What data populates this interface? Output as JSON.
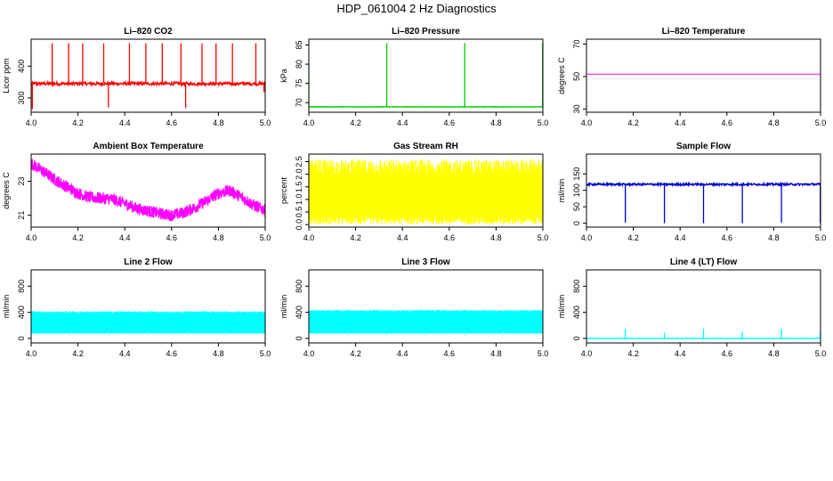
{
  "figure": {
    "title": "HDP_061004  2 Hz Diagnostics"
  },
  "chart_data": [
    {
      "id": "co2",
      "type": "line",
      "title": "Li–820 CO2",
      "xlabel": "",
      "ylabel": "Licor ppm",
      "xlim": [
        4.0,
        5.0
      ],
      "ylim": [
        255,
        485
      ],
      "xticks": [
        4.0,
        4.2,
        4.4,
        4.6,
        4.8,
        5.0
      ],
      "yticks": [
        300,
        400
      ],
      "color": "#ff0000",
      "series": [
        {
          "baseline": 345,
          "noise": 5,
          "spikes": [
            {
              "x": 4.09,
              "y": 472
            },
            {
              "x": 4.16,
              "y": 472
            },
            {
              "x": 4.22,
              "y": 472
            },
            {
              "x": 4.31,
              "y": 472
            },
            {
              "x": 4.42,
              "y": 472
            },
            {
              "x": 4.49,
              "y": 472
            },
            {
              "x": 4.56,
              "y": 472
            },
            {
              "x": 4.64,
              "y": 472
            },
            {
              "x": 4.73,
              "y": 472
            },
            {
              "x": 4.79,
              "y": 472
            },
            {
              "x": 4.86,
              "y": 472
            },
            {
              "x": 4.96,
              "y": 472
            }
          ],
          "dips": [
            {
              "x": 4.005,
              "y": 265
            },
            {
              "x": 4.33,
              "y": 270
            },
            {
              "x": 4.66,
              "y": 268
            },
            {
              "x": 4.995,
              "y": 318
            }
          ]
        }
      ]
    },
    {
      "id": "pressure",
      "type": "line",
      "title": "Li–820 Pressure",
      "xlabel": "",
      "ylabel": "kPa",
      "xlim": [
        4.0,
        5.0
      ],
      "ylim": [
        67.5,
        86.5
      ],
      "xticks": [
        4.0,
        4.2,
        4.4,
        4.6,
        4.8,
        5.0
      ],
      "yticks": [
        70,
        75,
        80,
        85
      ],
      "color": "#00cc00",
      "series": [
        {
          "baseline": 68.9,
          "noise": 0.05,
          "spikes": [
            {
              "x": 4.0,
              "y": 80.0
            },
            {
              "x": 4.333,
              "y": 85.5
            },
            {
              "x": 4.666,
              "y": 85.5
            },
            {
              "x": 4.999,
              "y": 85.5
            }
          ],
          "dips": []
        }
      ]
    },
    {
      "id": "temperature",
      "type": "line",
      "title": "Li–820 Temperature",
      "xlabel": "",
      "ylabel": "degrees C",
      "xlim": [
        4.0,
        5.0
      ],
      "ylim": [
        28,
        73
      ],
      "xticks": [
        4.0,
        4.2,
        4.4,
        4.6,
        4.8,
        5.0
      ],
      "yticks": [
        30,
        50,
        70
      ],
      "color": "#ff00ff",
      "series": [
        {
          "points": [
            [
              4.0,
              51.5
            ],
            [
              5.0,
              51.5
            ]
          ]
        }
      ]
    },
    {
      "id": "ambient",
      "type": "line",
      "title": "Ambient Box Temperature",
      "xlabel": "",
      "ylabel": "degrees C",
      "xlim": [
        4.0,
        5.0
      ],
      "ylim": [
        20.3,
        24.6
      ],
      "xticks": [
        4.0,
        4.2,
        4.4,
        4.6,
        4.8,
        5.0
      ],
      "yticks": [
        21,
        23
      ],
      "color": "#ff00ff",
      "series": [
        {
          "band": 0.35,
          "points": [
            [
              4.0,
              24.05
            ],
            [
              4.05,
              23.6
            ],
            [
              4.1,
              23.1
            ],
            [
              4.15,
              22.7
            ],
            [
              4.2,
              22.3
            ],
            [
              4.25,
              22.05
            ],
            [
              4.3,
              22.0
            ],
            [
              4.35,
              21.95
            ],
            [
              4.4,
              21.7
            ],
            [
              4.45,
              21.4
            ],
            [
              4.5,
              21.25
            ],
            [
              4.55,
              21.1
            ],
            [
              4.6,
              21.0
            ],
            [
              4.65,
              21.15
            ],
            [
              4.7,
              21.45
            ],
            [
              4.75,
              21.85
            ],
            [
              4.8,
              22.3
            ],
            [
              4.85,
              22.45
            ],
            [
              4.9,
              22.05
            ],
            [
              4.95,
              21.6
            ],
            [
              5.0,
              21.3
            ]
          ]
        }
      ]
    },
    {
      "id": "rh",
      "type": "line",
      "title": "Gas Stream RH",
      "xlabel": "",
      "ylabel": "percent",
      "xlim": [
        4.0,
        5.0
      ],
      "ylim": [
        -0.1,
        2.8
      ],
      "xticks": [
        4.0,
        4.2,
        4.4,
        4.6,
        4.8,
        5.0
      ],
      "yticks": [
        0.0,
        0.5,
        1.0,
        1.5,
        2.0,
        2.5
      ],
      "color": "#ffff00",
      "series": [
        {
          "center": 1.1,
          "low": 0.0,
          "high": 2.6,
          "core_low": 0.35,
          "core_high": 1.95
        }
      ]
    },
    {
      "id": "sample_flow",
      "type": "line",
      "title": "Sample Flow",
      "xlabel": "",
      "ylabel": "ml/min",
      "xlim": [
        4.0,
        5.0
      ],
      "ylim": [
        -12,
        210
      ],
      "xticks": [
        4.0,
        4.2,
        4.4,
        4.6,
        4.8,
        5.0
      ],
      "yticks": [
        0,
        50,
        100,
        150
      ],
      "color": "#0000cc",
      "series": [
        {
          "baseline": 118,
          "noise": 3,
          "spikes": [],
          "dips": [
            {
              "x": 4.166,
              "y": 2
            },
            {
              "x": 4.333,
              "y": 0
            },
            {
              "x": 4.5,
              "y": 0
            },
            {
              "x": 4.666,
              "y": 0
            },
            {
              "x": 4.833,
              "y": 2
            },
            {
              "x": 4.999,
              "y": 0
            }
          ]
        }
      ]
    },
    {
      "id": "line2",
      "type": "line",
      "title": "Line 2 Flow",
      "xlabel": "",
      "ylabel": "ml/min",
      "xlim": [
        4.0,
        5.0
      ],
      "ylim": [
        -70,
        1050
      ],
      "xticks": [
        4.0,
        4.2,
        4.4,
        4.6,
        4.8,
        5.0
      ],
      "yticks": [
        0,
        400,
        800
      ],
      "color": "#00ffff",
      "series": [
        {
          "low": 75,
          "high": 420,
          "gaps": [
            4.166,
            4.333,
            4.5,
            4.666,
            4.833
          ]
        }
      ]
    },
    {
      "id": "line3",
      "type": "line",
      "title": "Line 3 Flow",
      "xlabel": "",
      "ylabel": "ml/min",
      "xlim": [
        4.0,
        5.0
      ],
      "ylim": [
        -70,
        1050
      ],
      "xticks": [
        4.0,
        4.2,
        4.4,
        4.6,
        4.8,
        5.0
      ],
      "yticks": [
        0,
        400,
        800
      ],
      "color": "#00ffff",
      "series": [
        {
          "low": 75,
          "high": 440,
          "gaps": [
            4.166,
            4.333,
            4.5,
            4.666,
            4.833
          ]
        }
      ]
    },
    {
      "id": "line4",
      "type": "line",
      "title": "Line 4 (LT) Flow",
      "xlabel": "",
      "ylabel": "ml/min",
      "xlim": [
        4.0,
        5.0
      ],
      "ylim": [
        -70,
        1050
      ],
      "xticks": [
        4.0,
        4.2,
        4.4,
        4.6,
        4.8,
        5.0
      ],
      "yticks": [
        0,
        400,
        800
      ],
      "color": "#00ffff",
      "series": [
        {
          "baseline": 0,
          "noise": 2,
          "spikes": [
            {
              "x": 4.166,
              "y": 145
            },
            {
              "x": 4.333,
              "y": 90
            },
            {
              "x": 4.5,
              "y": 150
            },
            {
              "x": 4.666,
              "y": 95
            },
            {
              "x": 4.833,
              "y": 145
            },
            {
              "x": 4.999,
              "y": 110
            }
          ],
          "dips": []
        }
      ]
    }
  ]
}
